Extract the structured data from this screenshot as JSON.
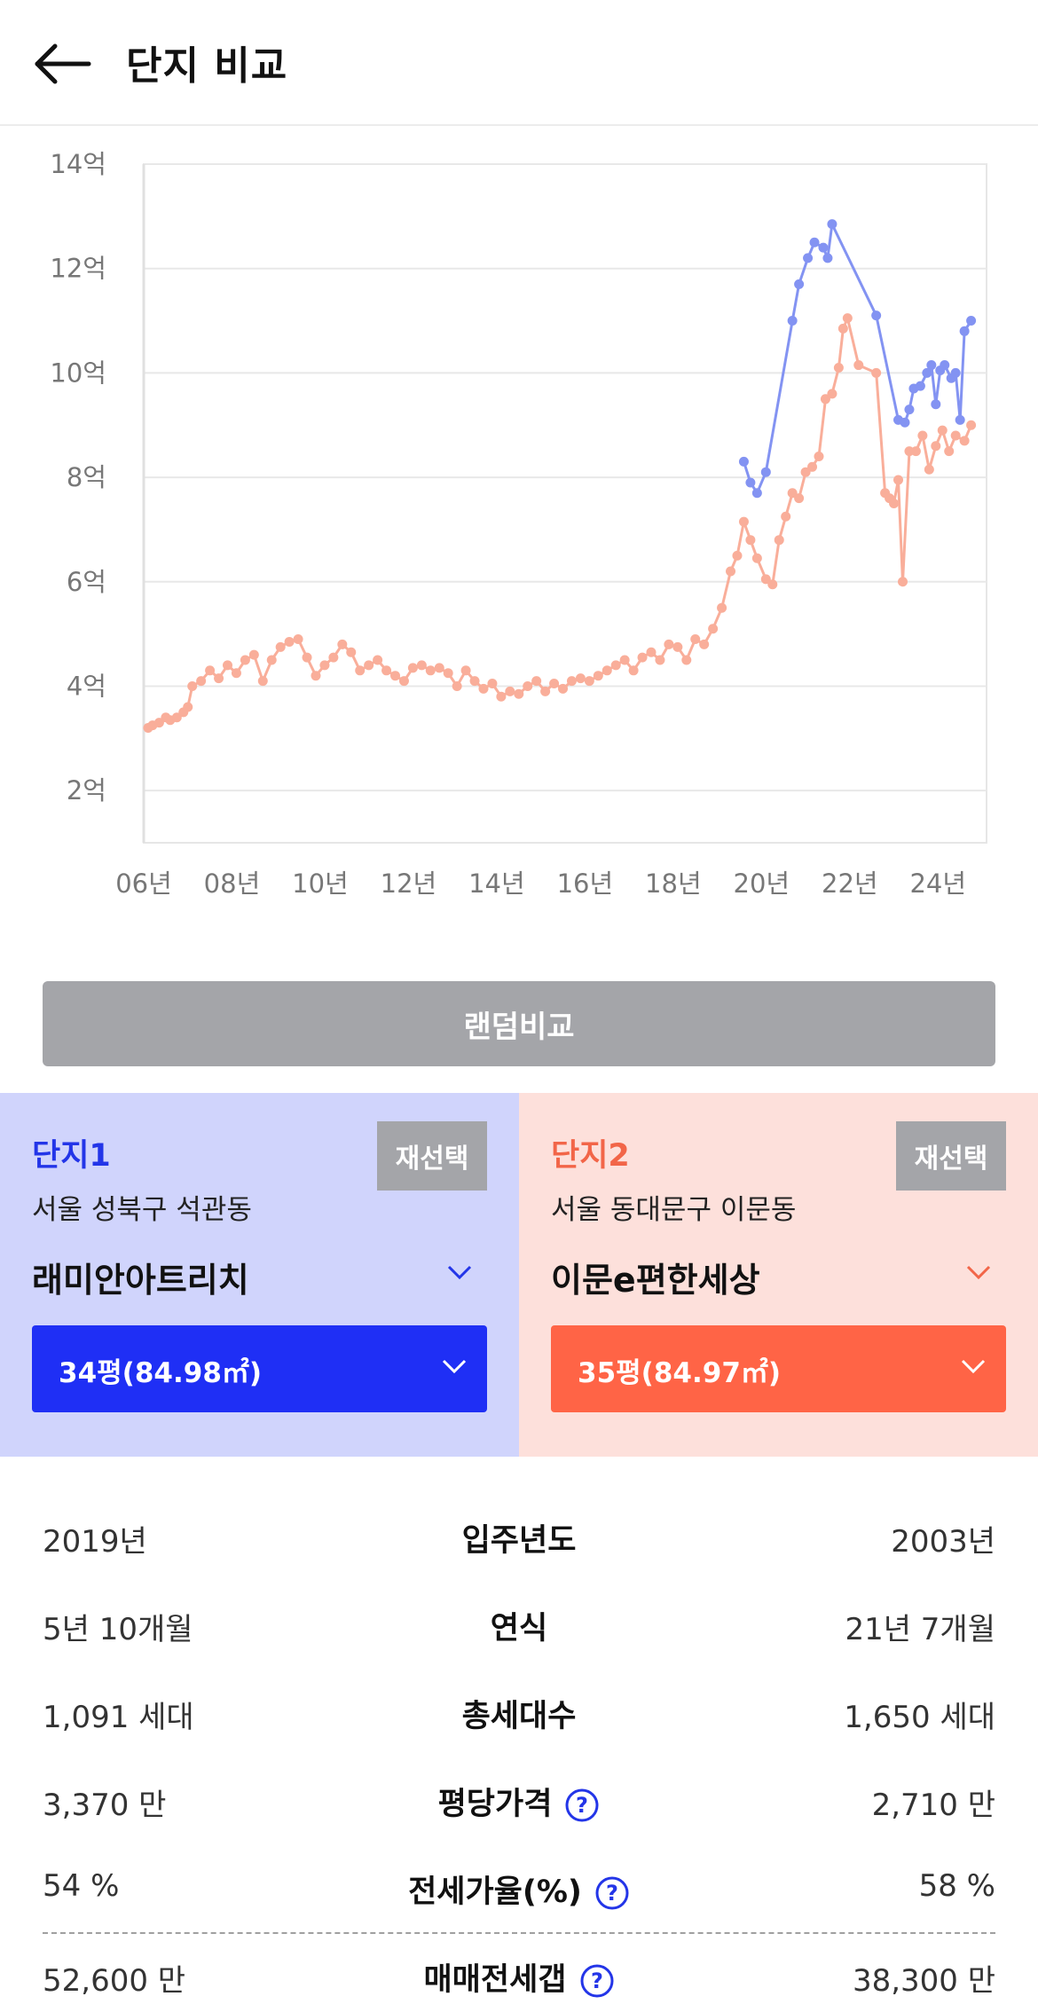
{
  "header": {
    "title": "단지 비교"
  },
  "chart_data": {
    "type": "line",
    "y_ticks": [
      "14억",
      "12억",
      "10억",
      "8억",
      "6억",
      "4억",
      "2억"
    ],
    "x_ticks": [
      "06년",
      "08년",
      "10년",
      "12년",
      "14년",
      "16년",
      "18년",
      "20년",
      "22년",
      "24년"
    ],
    "xlim": [
      2006,
      2025.1
    ],
    "ylim": [
      1,
      14
    ],
    "y_unit": "억",
    "grid": true,
    "series": [
      {
        "color": "#8393f2",
        "points": [
          [
            2019.6,
            8.3
          ],
          [
            2019.75,
            7.9
          ],
          [
            2019.9,
            7.7
          ],
          [
            2020.1,
            8.1
          ],
          [
            2020.7,
            11.0
          ],
          [
            2020.85,
            11.7
          ],
          [
            2021.05,
            12.2
          ],
          [
            2021.2,
            12.5
          ],
          [
            2021.4,
            12.4
          ],
          [
            2021.5,
            12.2
          ],
          [
            2021.6,
            12.85
          ],
          [
            2022.6,
            11.1
          ],
          [
            2023.1,
            9.1
          ],
          [
            2023.25,
            9.05
          ],
          [
            2023.35,
            9.3
          ],
          [
            2023.45,
            9.7
          ],
          [
            2023.6,
            9.75
          ],
          [
            2023.75,
            10.0
          ],
          [
            2023.85,
            10.15
          ],
          [
            2023.95,
            9.4
          ],
          [
            2024.05,
            10.05
          ],
          [
            2024.15,
            10.15
          ],
          [
            2024.3,
            9.9
          ],
          [
            2024.4,
            10.0
          ],
          [
            2024.5,
            9.1
          ],
          [
            2024.6,
            10.8
          ],
          [
            2024.75,
            11.0
          ]
        ]
      },
      {
        "color": "#f9ae9a",
        "points": [
          [
            2006.1,
            3.2
          ],
          [
            2006.2,
            3.25
          ],
          [
            2006.35,
            3.3
          ],
          [
            2006.5,
            3.4
          ],
          [
            2006.6,
            3.35
          ],
          [
            2006.75,
            3.4
          ],
          [
            2006.9,
            3.5
          ],
          [
            2007.0,
            3.6
          ],
          [
            2007.1,
            4.0
          ],
          [
            2007.3,
            4.1
          ],
          [
            2007.5,
            4.3
          ],
          [
            2007.7,
            4.15
          ],
          [
            2007.9,
            4.4
          ],
          [
            2008.1,
            4.25
          ],
          [
            2008.3,
            4.5
          ],
          [
            2008.5,
            4.6
          ],
          [
            2008.7,
            4.1
          ],
          [
            2008.9,
            4.5
          ],
          [
            2009.1,
            4.75
          ],
          [
            2009.3,
            4.85
          ],
          [
            2009.5,
            4.9
          ],
          [
            2009.7,
            4.55
          ],
          [
            2009.9,
            4.2
          ],
          [
            2010.1,
            4.4
          ],
          [
            2010.3,
            4.55
          ],
          [
            2010.5,
            4.8
          ],
          [
            2010.7,
            4.65
          ],
          [
            2010.9,
            4.3
          ],
          [
            2011.1,
            4.4
          ],
          [
            2011.3,
            4.5
          ],
          [
            2011.5,
            4.3
          ],
          [
            2011.7,
            4.2
          ],
          [
            2011.9,
            4.1
          ],
          [
            2012.1,
            4.35
          ],
          [
            2012.3,
            4.4
          ],
          [
            2012.5,
            4.3
          ],
          [
            2012.7,
            4.35
          ],
          [
            2012.9,
            4.25
          ],
          [
            2013.1,
            4.0
          ],
          [
            2013.3,
            4.3
          ],
          [
            2013.5,
            4.1
          ],
          [
            2013.7,
            3.95
          ],
          [
            2013.9,
            4.05
          ],
          [
            2014.1,
            3.8
          ],
          [
            2014.3,
            3.9
          ],
          [
            2014.5,
            3.85
          ],
          [
            2014.7,
            4.0
          ],
          [
            2014.9,
            4.1
          ],
          [
            2015.1,
            3.9
          ],
          [
            2015.3,
            4.05
          ],
          [
            2015.5,
            3.95
          ],
          [
            2015.7,
            4.1
          ],
          [
            2015.9,
            4.15
          ],
          [
            2016.1,
            4.1
          ],
          [
            2016.3,
            4.2
          ],
          [
            2016.5,
            4.3
          ],
          [
            2016.7,
            4.4
          ],
          [
            2016.9,
            4.5
          ],
          [
            2017.1,
            4.3
          ],
          [
            2017.3,
            4.55
          ],
          [
            2017.5,
            4.65
          ],
          [
            2017.7,
            4.5
          ],
          [
            2017.9,
            4.8
          ],
          [
            2018.1,
            4.75
          ],
          [
            2018.3,
            4.5
          ],
          [
            2018.5,
            4.9
          ],
          [
            2018.7,
            4.8
          ],
          [
            2018.9,
            5.1
          ],
          [
            2019.1,
            5.5
          ],
          [
            2019.3,
            6.2
          ],
          [
            2019.45,
            6.5
          ],
          [
            2019.6,
            7.15
          ],
          [
            2019.75,
            6.8
          ],
          [
            2019.9,
            6.45
          ],
          [
            2020.1,
            6.05
          ],
          [
            2020.25,
            5.95
          ],
          [
            2020.4,
            6.8
          ],
          [
            2020.55,
            7.25
          ],
          [
            2020.7,
            7.7
          ],
          [
            2020.85,
            7.6
          ],
          [
            2021.0,
            8.1
          ],
          [
            2021.15,
            8.2
          ],
          [
            2021.3,
            8.4
          ],
          [
            2021.45,
            9.5
          ],
          [
            2021.6,
            9.6
          ],
          [
            2021.75,
            10.1
          ],
          [
            2021.85,
            10.85
          ],
          [
            2021.95,
            11.05
          ],
          [
            2022.2,
            10.15
          ],
          [
            2022.6,
            10.0
          ],
          [
            2022.8,
            7.7
          ],
          [
            2022.9,
            7.6
          ],
          [
            2023.0,
            7.5
          ],
          [
            2023.1,
            7.95
          ],
          [
            2023.2,
            6.0
          ],
          [
            2023.35,
            8.5
          ],
          [
            2023.5,
            8.5
          ],
          [
            2023.65,
            8.8
          ],
          [
            2023.8,
            8.15
          ],
          [
            2023.95,
            8.6
          ],
          [
            2024.1,
            8.9
          ],
          [
            2024.25,
            8.5
          ],
          [
            2024.4,
            8.8
          ],
          [
            2024.6,
            8.7
          ],
          [
            2024.75,
            9.0
          ]
        ]
      }
    ]
  },
  "random_button": "랜덤비교",
  "complex1": {
    "label": "단지1",
    "reselect": "재선택",
    "address": "서울 성북구 석관동",
    "name": "래미안아트리치",
    "size": "34평(84.98㎡)",
    "color": "#1f2ff5"
  },
  "complex2": {
    "label": "단지2",
    "reselect": "재선택",
    "address": "서울 동대문구 이문동",
    "name": "이문e편한세상",
    "size": "35평(84.97㎡)",
    "color": "#ff6446"
  },
  "stats": [
    {
      "label": "입주년도",
      "left": "2019년",
      "right": "2003년",
      "help": false
    },
    {
      "label": "연식",
      "left": "5년 10개월",
      "right": "21년 7개월",
      "help": false
    },
    {
      "label": "총세대수",
      "left": "1,091 세대",
      "right": "1,650 세대",
      "help": false
    },
    {
      "label": "평당가격",
      "left": "3,370 만",
      "right": "2,710 만",
      "help": true
    },
    {
      "label": "전세가율(%)",
      "left": "54 %",
      "right": "58 %",
      "help": true
    },
    {
      "label": "매매전세갭",
      "left": "52,600 만",
      "right": "38,300 만",
      "help": true
    }
  ]
}
